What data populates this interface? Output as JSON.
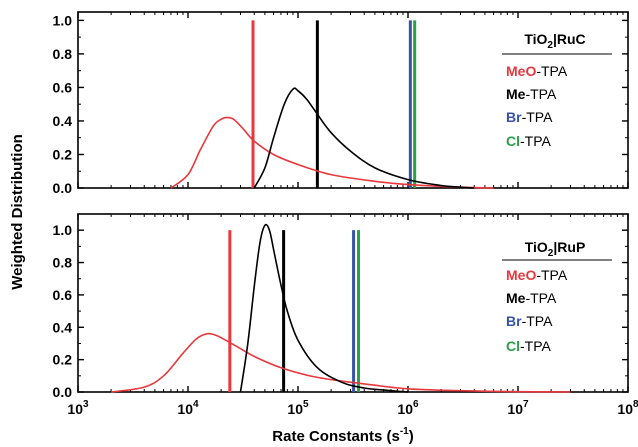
{
  "chart_data": [
    {
      "type": "line",
      "panel": "top",
      "legend_title": "RuC",
      "xlabel": "",
      "ylabel": "",
      "xscale": "log",
      "xlim": [
        1000,
        100000000
      ],
      "ylim": [
        0,
        1.05
      ],
      "y_ticks": [
        "0.0",
        "0.2",
        "0.4",
        "0.6",
        "0.8",
        "1.0"
      ],
      "x_ticks": [],
      "series": [
        {
          "name": "MeO-TPA",
          "color": "#e8383d",
          "x": [
            7000,
            10000,
            13000,
            17000,
            20000,
            22400,
            26000,
            32000,
            40000,
            60000,
            100000,
            200000,
            500000,
            1000000,
            3000000,
            6000000
          ],
          "y": [
            0.0,
            0.08,
            0.23,
            0.37,
            0.41,
            0.42,
            0.41,
            0.35,
            0.28,
            0.2,
            0.14,
            0.08,
            0.04,
            0.02,
            0.005,
            0.0
          ]
        },
        {
          "name": "Me-TPA",
          "color": "#000000",
          "x": [
            40000,
            50000,
            60000,
            75000,
            90000,
            100000,
            120000,
            150000,
            200000,
            300000,
            500000,
            1000000,
            2000000,
            3000000,
            4000000
          ],
          "y": [
            0.0,
            0.12,
            0.3,
            0.5,
            0.59,
            0.58,
            0.53,
            0.44,
            0.33,
            0.22,
            0.12,
            0.05,
            0.015,
            0.005,
            0.0
          ]
        }
      ],
      "markers": [
        {
          "series": "MeO-TPA",
          "x": 39000,
          "color": "#e8383d"
        },
        {
          "series": "Me-TPA",
          "x": 150000,
          "color": "#000000"
        },
        {
          "series": "Br-TPA",
          "x": 1050000,
          "color": "#3953a4"
        },
        {
          "series": "Cl-TPA",
          "x": 1150000,
          "color": "#2aa04a"
        }
      ],
      "legend": [
        {
          "prefix": "MeO",
          "prefix_color": "#e8383d",
          "suffix": "-TPA"
        },
        {
          "prefix": "Me",
          "prefix_color": "#000000",
          "suffix": "-TPA"
        },
        {
          "prefix": "Br",
          "prefix_color": "#3953a4",
          "suffix": "-TPA"
        },
        {
          "prefix": "Cl",
          "prefix_color": "#2aa04a",
          "suffix": "-TPA"
        }
      ]
    },
    {
      "type": "line",
      "panel": "bottom",
      "legend_title": "RuP",
      "xlabel": "Rate Constants (s",
      "ylabel": "",
      "xscale": "log",
      "xlim": [
        1000,
        100000000
      ],
      "ylim": [
        0,
        1.1
      ],
      "y_ticks": [
        "0.0",
        "0.2",
        "0.4",
        "0.6",
        "0.8",
        "1.0"
      ],
      "x_ticks": [
        "3",
        "4",
        "5",
        "6",
        "7",
        "8"
      ],
      "series": [
        {
          "name": "MeO-TPA",
          "color": "#e8383d",
          "x": [
            2000,
            4000,
            6000,
            9000,
            12000,
            15000,
            18000,
            22000,
            28000,
            40000,
            70000,
            150000,
            400000,
            1000000,
            3000000,
            10000000,
            30000000
          ],
          "y": [
            0.0,
            0.03,
            0.1,
            0.24,
            0.33,
            0.36,
            0.35,
            0.32,
            0.28,
            0.22,
            0.15,
            0.09,
            0.05,
            0.02,
            0.008,
            0.002,
            0.0
          ]
        },
        {
          "name": "Me-TPA",
          "color": "#000000",
          "x": [
            30000,
            35000,
            40000,
            45000,
            50000,
            55000,
            60000,
            70000,
            80000,
            100000,
            150000,
            250000,
            400000,
            700000,
            1000000
          ],
          "y": [
            0.0,
            0.3,
            0.65,
            0.92,
            1.03,
            1.0,
            0.88,
            0.66,
            0.5,
            0.32,
            0.15,
            0.06,
            0.025,
            0.008,
            0.0
          ]
        }
      ],
      "markers": [
        {
          "series": "MeO-TPA",
          "x": 24000,
          "color": "#e8383d"
        },
        {
          "series": "Me-TPA",
          "x": 74000,
          "color": "#000000"
        },
        {
          "series": "Br-TPA",
          "x": 320000,
          "color": "#3953a4"
        },
        {
          "series": "Cl-TPA",
          "x": 355000,
          "color": "#2aa04a"
        }
      ],
      "legend": [
        {
          "prefix": "MeO",
          "prefix_color": "#e8383d",
          "suffix": "-TPA"
        },
        {
          "prefix": "Me",
          "prefix_color": "#000000",
          "suffix": "-TPA"
        },
        {
          "prefix": "Br",
          "prefix_color": "#3953a4",
          "suffix": "-TPA"
        },
        {
          "prefix": "Cl",
          "prefix_color": "#2aa04a",
          "suffix": "-TPA"
        }
      ]
    }
  ],
  "shared": {
    "ylabel": "Weighted Distribution",
    "xlabel_main": "Rate Constants (s",
    "xlabel_sup": "-1",
    "xlabel_end": ")",
    "tick_base": "10",
    "legend_title_prefix": "TiO",
    "legend_title_sub": "2"
  }
}
